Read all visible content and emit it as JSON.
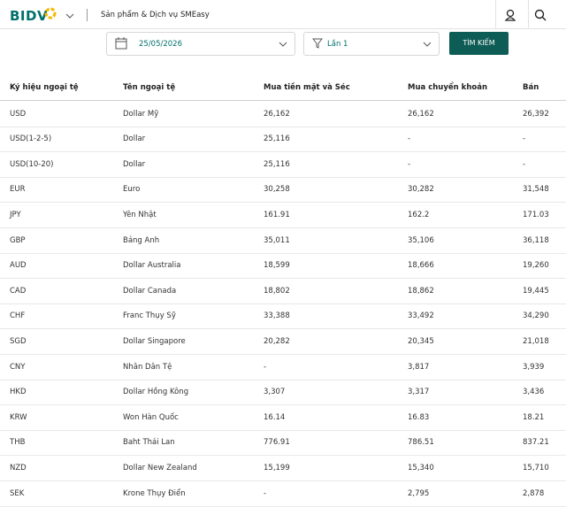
{
  "header": {
    "logo": "BIDV",
    "nav": [
      "Sản phẩm & Dịch vụ",
      "SMEasy"
    ]
  },
  "search": {
    "date": "25/05/2026",
    "filter": "Lần 1",
    "button": "TÌM KIẾM"
  },
  "table": {
    "columns": [
      "Ký hiệu ngoại tệ",
      "Tên ngoại tệ",
      "Mua tiền mặt và Séc",
      "Mua chuyển khoản",
      "Bán"
    ],
    "rows": [
      [
        "USD",
        "Dollar Mỹ",
        "26,162",
        "26,162",
        "26,392"
      ],
      [
        "USD(1-2-5)",
        "Dollar",
        "25,116",
        "-",
        "-"
      ],
      [
        "USD(10-20)",
        "Dollar",
        "25,116",
        "-",
        "-"
      ],
      [
        "EUR",
        "Euro",
        "30,258",
        "30,282",
        "31,548"
      ],
      [
        "JPY",
        "Yên Nhật",
        "161.91",
        "162.2",
        "171.03"
      ],
      [
        "GBP",
        "Bảng Anh",
        "35,011",
        "35,106",
        "36,118"
      ],
      [
        "AUD",
        "Dollar Australia",
        "18,599",
        "18,666",
        "19,260"
      ],
      [
        "CAD",
        "Dollar Canada",
        "18,802",
        "18,862",
        "19,445"
      ],
      [
        "CHF",
        "Franc Thụy Sỹ",
        "33,388",
        "33,492",
        "34,290"
      ],
      [
        "SGD",
        "Dollar Singapore",
        "20,282",
        "20,345",
        "21,018"
      ],
      [
        "CNY",
        "Nhân Dân Tệ",
        "-",
        "3,817",
        "3,939"
      ],
      [
        "HKD",
        "Dollar Hồng Kông",
        "3,307",
        "3,317",
        "3,436"
      ],
      [
        "KRW",
        "Won Hàn Quốc",
        "16.14",
        "16.83",
        "18.21"
      ],
      [
        "THB",
        "Baht Thái Lan",
        "776.91",
        "786.51",
        "837.21"
      ],
      [
        "NZD",
        "Dollar New Zealand",
        "15,199",
        "15,340",
        "15,710"
      ],
      [
        "SEK",
        "Krone Thụy Điển",
        "-",
        "2,795",
        "2,878"
      ]
    ]
  }
}
